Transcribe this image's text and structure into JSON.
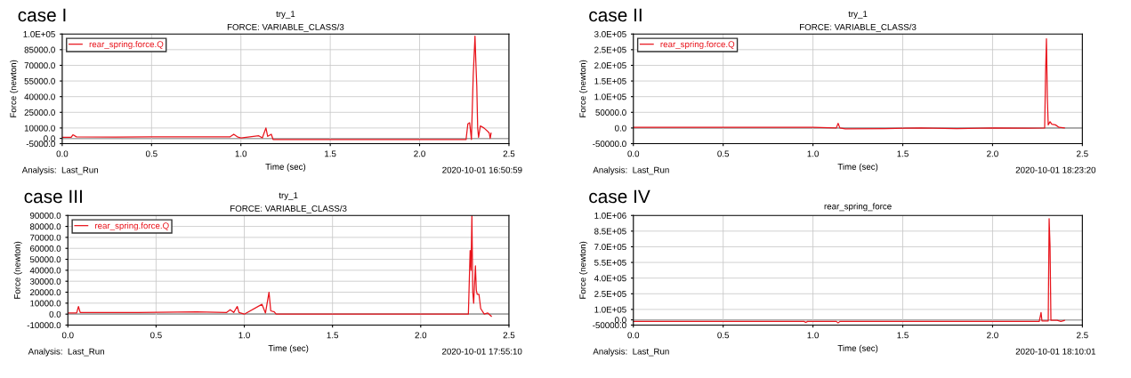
{
  "chart_data": [
    {
      "type": "line",
      "title": "try_1",
      "subtitle": "FORCE: VARIABLE_CLASS/3",
      "xlabel": "Time (sec)",
      "ylabel": "Force (newton)",
      "annotations": [
        "case I",
        "Analysis:  Last_Run",
        "2020-10-01 16:50:59"
      ],
      "legend": "top left",
      "grid": true,
      "marker": "none",
      "line_style": "solid",
      "xlim": [
        0.0,
        2.5
      ],
      "xticks": [
        {
          "value": 0,
          "label": "0.0"
        },
        0.5,
        {
          "value": 1,
          "label": "1.0"
        },
        1.5,
        {
          "value": 2,
          "label": "2.0"
        },
        2.5
      ],
      "ylim": [
        -5000,
        100000
      ],
      "yticks": [
        {
          "value": -5000,
          "label": "-5000.0"
        },
        {
          "value": 0,
          "label": "0.0"
        },
        {
          "value": 10000,
          "label": "10000.0"
        },
        {
          "value": 25000,
          "label": "25000.0"
        },
        {
          "value": 40000,
          "label": "40000.0"
        },
        {
          "value": 55000,
          "label": "55000.0"
        },
        {
          "value": 70000,
          "label": "70000.0"
        },
        {
          "value": 85000,
          "label": "85000.0"
        },
        {
          "value": 100000,
          "label": "1.0E+05"
        }
      ],
      "series": [
        {
          "name": "rear_spring.force.Q",
          "color": "#e8141c",
          "x": [
            0.0,
            0.05,
            0.06,
            0.08,
            0.3,
            0.5,
            0.7,
            0.94,
            0.96,
            0.98,
            1.0,
            1.1,
            1.12,
            1.14,
            1.15,
            1.17,
            1.18,
            1.5,
            2.0,
            2.26,
            2.27,
            2.28,
            2.29,
            2.3,
            2.31,
            2.315,
            2.32,
            2.325,
            2.33,
            2.34,
            2.36,
            2.38,
            2.39,
            2.395,
            2.4
          ],
          "values": [
            1000,
            1000,
            3500,
            1500,
            1200,
            1500,
            1500,
            1500,
            4000,
            1500,
            500,
            2500,
            500,
            10000,
            2000,
            4000,
            -1000,
            -1000,
            -1000,
            -1000,
            14000,
            15000,
            -1000,
            60000,
            98000,
            72000,
            50000,
            10000,
            1000,
            12000,
            10000,
            7000,
            5000,
            0,
            5000
          ]
        }
      ]
    },
    {
      "type": "line",
      "title": "try_1",
      "subtitle": "FORCE: VARIABLE_CLASS/3",
      "xlabel": "Time (sec)",
      "ylabel": "Force (newton)",
      "annotations": [
        "case II",
        "Analysis:  Last_Run",
        "2020-10-01 18:23:20"
      ],
      "legend": "top left",
      "grid": true,
      "marker": "none",
      "line_style": "solid",
      "xlim": [
        0.0,
        2.5
      ],
      "xticks": [
        {
          "value": 0,
          "label": "0.0"
        },
        0.5,
        {
          "value": 1,
          "label": "1.0"
        },
        1.5,
        {
          "value": 2,
          "label": "2.0"
        },
        2.5
      ],
      "ylim": [
        -50000,
        300000
      ],
      "yticks": [
        {
          "value": -50000,
          "label": "-50000.0"
        },
        {
          "value": 0,
          "label": "0.0"
        },
        {
          "value": 50000,
          "label": "50000.0"
        },
        {
          "value": 100000,
          "label": "1.0E+05"
        },
        {
          "value": 150000,
          "label": "1.5E+05"
        },
        {
          "value": 200000,
          "label": "2.0E+05"
        },
        {
          "value": 250000,
          "label": "2.5E+05"
        },
        {
          "value": 300000,
          "label": "3.0E+05"
        }
      ],
      "series": [
        {
          "name": "rear_spring.force.Q",
          "color": "#e8141c",
          "x": [
            0.0,
            0.5,
            1.0,
            1.13,
            1.14,
            1.15,
            1.18,
            1.4,
            1.6,
            1.8,
            2.0,
            2.2,
            2.29,
            2.295,
            2.3,
            2.305,
            2.31,
            2.32,
            2.33,
            2.35,
            2.37,
            2.4
          ],
          "values": [
            2000,
            2000,
            2000,
            0,
            15000,
            0,
            -3000,
            -2000,
            0,
            -2000,
            0,
            -1000,
            0,
            170000,
            285000,
            95000,
            10000,
            20000,
            12000,
            10000,
            2000,
            0
          ]
        }
      ]
    },
    {
      "type": "line",
      "title": "try_1",
      "subtitle": "FORCE: VARIABLE_CLASS/3",
      "xlabel": "Time (sec)",
      "ylabel": "Force (newton)",
      "annotations": [
        "case III",
        "Analysis:  Last_Run",
        "2020-10-01 17:55:10"
      ],
      "legend": "top left",
      "grid": true,
      "marker": "none",
      "line_style": "solid",
      "xlim": [
        0.0,
        2.5
      ],
      "xticks": [
        {
          "value": 0,
          "label": "0.0"
        },
        0.5,
        {
          "value": 1,
          "label": "1.0"
        },
        1.5,
        {
          "value": 2,
          "label": "2.0"
        },
        2.5
      ],
      "ylim": [
        -10000,
        90000
      ],
      "yticks": [
        {
          "value": -10000,
          "label": "-10000.0"
        },
        {
          "value": 0,
          "label": "0.0"
        },
        {
          "value": 10000,
          "label": "10000.0"
        },
        {
          "value": 20000,
          "label": "20000.0"
        },
        {
          "value": 30000,
          "label": "30000.0"
        },
        {
          "value": 40000,
          "label": "40000.0"
        },
        {
          "value": 50000,
          "label": "50000.0"
        },
        {
          "value": 60000,
          "label": "60000.0"
        },
        {
          "value": 70000,
          "label": "70000.0"
        },
        {
          "value": 80000,
          "label": "80000.0"
        },
        {
          "value": 90000,
          "label": "90000.0"
        }
      ],
      "series": [
        {
          "name": "rear_spring.force.Q",
          "color": "#e8141c",
          "x": [
            0.0,
            0.05,
            0.06,
            0.07,
            0.4,
            0.73,
            0.9,
            0.92,
            0.94,
            0.96,
            0.97,
            1.0,
            1.1,
            1.12,
            1.14,
            1.15,
            1.17,
            1.18,
            1.5,
            2.0,
            2.27,
            2.28,
            2.285,
            2.29,
            2.295,
            2.3,
            2.31,
            2.315,
            2.32,
            2.33,
            2.34,
            2.36,
            2.38,
            2.4
          ],
          "values": [
            1000,
            1000,
            7000,
            1500,
            1500,
            2000,
            1500,
            4000,
            1500,
            7000,
            1500,
            0,
            9000,
            1000,
            20000,
            3000,
            2000,
            0,
            0,
            0,
            0,
            58000,
            40000,
            90000,
            20000,
            10000,
            44000,
            22000,
            18000,
            18000,
            5000,
            0,
            1000,
            -2000
          ]
        }
      ]
    },
    {
      "type": "line",
      "title": "rear_spring_force",
      "xlabel": "Time (sec)",
      "ylabel": "Force (newton)",
      "annotations": [
        "case IV",
        "Analysis:  Last_Run",
        "2020-10-01 18:10:01"
      ],
      "grid": true,
      "marker": "none",
      "line_style": "solid",
      "xlim": [
        0.0,
        2.5
      ],
      "xticks": [
        {
          "value": 0,
          "label": "0.0"
        },
        0.5,
        {
          "value": 1,
          "label": "1.0"
        },
        1.5,
        {
          "value": 2,
          "label": "2.0"
        },
        2.5
      ],
      "ylim": [
        -50000,
        1000000
      ],
      "yticks": [
        {
          "value": -50000,
          "label": "-50000.0"
        },
        {
          "value": 0,
          "label": "0.0"
        },
        {
          "value": 100000,
          "label": "1.0E+05"
        },
        {
          "value": 250000,
          "label": "2.5E+05"
        },
        {
          "value": 400000,
          "label": "4.0E+05"
        },
        {
          "value": 550000,
          "label": "5.5E+05"
        },
        {
          "value": 700000,
          "label": "7.0E+05"
        },
        {
          "value": 850000,
          "label": "8.5E+05"
        },
        {
          "value": 1000000,
          "label": "1.0E+06"
        }
      ],
      "series": [
        {
          "color": "#e8141c",
          "x": [
            0.0,
            0.5,
            0.95,
            0.96,
            0.97,
            1.13,
            1.14,
            1.15,
            1.5,
            2.0,
            2.26,
            2.27,
            2.275,
            2.31,
            2.315,
            2.32,
            2.325,
            2.36,
            2.38,
            2.4
          ],
          "values": [
            -15000,
            -15000,
            -15000,
            -25000,
            -15000,
            -15000,
            -30000,
            -15000,
            -15000,
            -15000,
            -15000,
            70000,
            -10000,
            -10000,
            970000,
            710000,
            -5000,
            -5000,
            -15000,
            -5000
          ]
        }
      ]
    }
  ]
}
